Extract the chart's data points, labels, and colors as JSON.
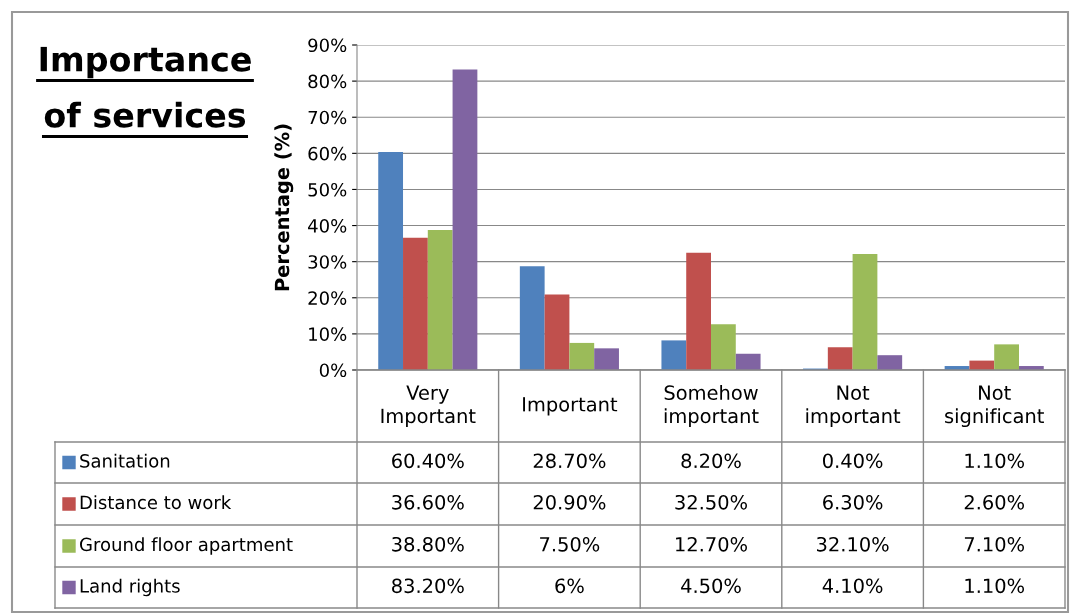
{
  "chart_data": {
    "type": "bar",
    "title": "Importance of services",
    "ylabel": "Percentage (%)",
    "categories": [
      "Very Important",
      "Important",
      "Somehow important",
      "Not important",
      "Not significant"
    ],
    "series": [
      {
        "name": "Sanitation",
        "color": "#4f81bd",
        "values": [
          60.4,
          28.7,
          8.2,
          0.4,
          1.1
        ],
        "value_labels": [
          "60.40%",
          "28.70%",
          "8.20%",
          "0.40%",
          "1.10%"
        ]
      },
      {
        "name": "Distance to work",
        "color": "#c0504d",
        "values": [
          36.6,
          20.9,
          32.5,
          6.3,
          2.6
        ],
        "value_labels": [
          "36.60%",
          "20.90%",
          "32.50%",
          "6.30%",
          "2.60%"
        ]
      },
      {
        "name": "Ground floor apartment",
        "color": "#9bbb59",
        "values": [
          38.8,
          7.5,
          12.7,
          32.1,
          7.1
        ],
        "value_labels": [
          "38.80%",
          "7.50%",
          "12.70%",
          "32.10%",
          "7.10%"
        ]
      },
      {
        "name": "Land rights",
        "color": "#8064a2",
        "values": [
          83.2,
          6,
          4.5,
          4.1,
          1.1
        ],
        "value_labels": [
          "83.20%",
          "6%",
          "4.50%",
          "4.10%",
          "1.10%"
        ]
      }
    ],
    "ylim": [
      0,
      90
    ],
    "yticks": [
      {
        "value": 0,
        "label": "0%"
      },
      {
        "value": 10,
        "label": "10%"
      },
      {
        "value": 20,
        "label": "20%"
      },
      {
        "value": 30,
        "label": "30%"
      },
      {
        "value": 40,
        "label": "40%"
      },
      {
        "value": 50,
        "label": "50%"
      },
      {
        "value": 60,
        "label": "60%"
      },
      {
        "value": 70,
        "label": "70%"
      },
      {
        "value": 80,
        "label": "80%"
      },
      {
        "value": 90,
        "label": "90%"
      }
    ],
    "grid": "y",
    "legend": "bottom left"
  }
}
